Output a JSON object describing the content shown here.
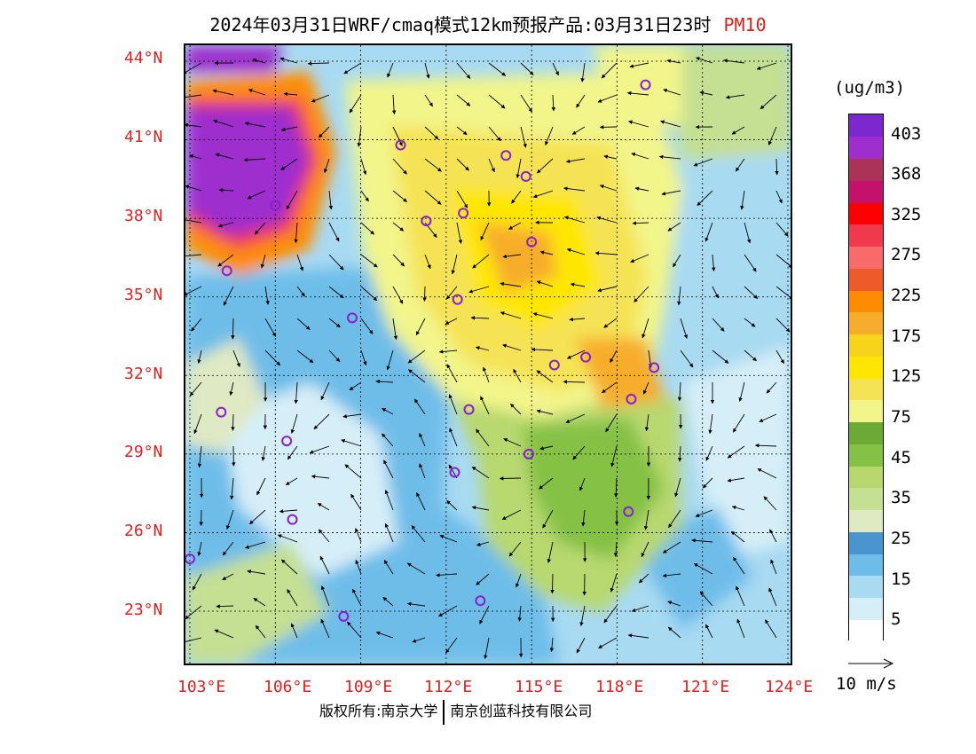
{
  "title": {
    "main": "2024年03月31日WRF/cmaq模式12km预报产品:03月31日23时",
    "pollutant": "PM10"
  },
  "legend": {
    "unit": "(ug/m3)",
    "colors": [
      "#ffffff",
      "#d6eef8",
      "#a8daf2",
      "#6ebde9",
      "#4a95cf",
      "#dfe9c3",
      "#c5df93",
      "#b8d86f",
      "#84c145",
      "#6aaa35",
      "#f2f58a",
      "#f5e355",
      "#ffe600",
      "#f8d31c",
      "#f7ad2b",
      "#ff8c00",
      "#ee5a2a",
      "#f96a6a",
      "#f0394d",
      "#ff0000",
      "#c6116c",
      "#ac3358",
      "#9e2fce",
      "#7b28ce"
    ],
    "labels": [
      "5",
      "15",
      "25",
      "35",
      "45",
      "75",
      "125",
      "175",
      "225",
      "275",
      "325",
      "368",
      "403"
    ],
    "reference_vector": "10 m/s"
  },
  "axes": {
    "lon_labels": [
      "103°E",
      "106°E",
      "109°E",
      "112°E",
      "115°E",
      "118°E",
      "121°E",
      "124°E"
    ],
    "lat_labels": [
      "44°N",
      "41°N",
      "38°N",
      "35°N",
      "32°N",
      "29°N",
      "26°N",
      "23°N"
    ]
  },
  "stations": [
    {
      "lon": 119.0,
      "lat": 43.1
    },
    {
      "lon": 110.4,
      "lat": 40.8
    },
    {
      "lon": 114.1,
      "lat": 40.4
    },
    {
      "lon": 114.8,
      "lat": 39.6
    },
    {
      "lon": 106.0,
      "lat": 38.5
    },
    {
      "lon": 111.3,
      "lat": 37.9
    },
    {
      "lon": 112.6,
      "lat": 38.2
    },
    {
      "lon": 115.0,
      "lat": 37.1
    },
    {
      "lon": 104.3,
      "lat": 36.0
    },
    {
      "lon": 112.4,
      "lat": 34.9
    },
    {
      "lon": 108.7,
      "lat": 34.2
    },
    {
      "lon": 116.9,
      "lat": 32.7
    },
    {
      "lon": 115.8,
      "lat": 32.4
    },
    {
      "lon": 119.3,
      "lat": 32.3
    },
    {
      "lon": 118.5,
      "lat": 31.1
    },
    {
      "lon": 112.8,
      "lat": 30.7
    },
    {
      "lon": 104.1,
      "lat": 30.6
    },
    {
      "lon": 106.4,
      "lat": 29.5
    },
    {
      "lon": 114.9,
      "lat": 29.0
    },
    {
      "lon": 112.3,
      "lat": 28.3
    },
    {
      "lon": 118.4,
      "lat": 26.8
    },
    {
      "lon": 106.6,
      "lat": 26.5
    },
    {
      "lon": 103.0,
      "lat": 25.0
    },
    {
      "lon": 113.2,
      "lat": 23.4
    },
    {
      "lon": 108.4,
      "lat": 22.8
    }
  ],
  "footer": {
    "copyright": "版权所有:南京大学",
    "company": "南京创蓝科技有限公司"
  }
}
